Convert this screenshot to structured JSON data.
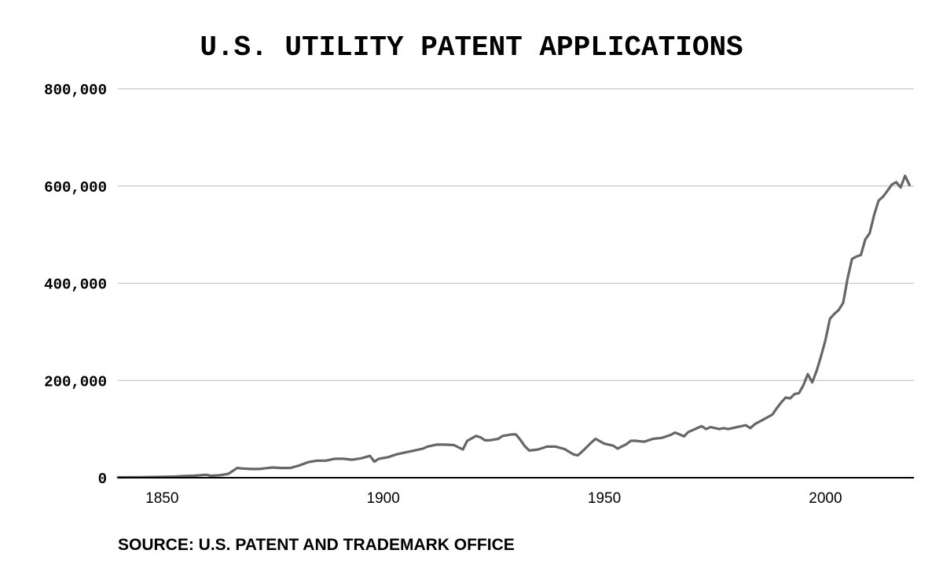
{
  "chart_data": {
    "type": "line",
    "title": "U.S. UTILITY PATENT APPLICATIONS",
    "xlabel": "",
    "ylabel": "",
    "xlim": [
      1840,
      2020
    ],
    "ylim": [
      0,
      800000
    ],
    "x_ticks": [
      "1850",
      "1900",
      "1950",
      "2000"
    ],
    "y_ticks": [
      "0",
      "200,000",
      "400,000",
      "600,000",
      "800,000"
    ],
    "grid": "horizontal",
    "color": "#666666",
    "source": "SOURCE: U.S. PATENT AND TRADEMARK OFFICE",
    "series": [
      {
        "points": [
          [
            1840,
            800
          ],
          [
            1845,
            1200
          ],
          [
            1850,
            2000
          ],
          [
            1853,
            2500
          ],
          [
            1855,
            3500
          ],
          [
            1857,
            4000
          ],
          [
            1860,
            6000
          ],
          [
            1861,
            4000
          ],
          [
            1863,
            5000
          ],
          [
            1865,
            8000
          ],
          [
            1867,
            20000
          ],
          [
            1868,
            19000
          ],
          [
            1870,
            18000
          ],
          [
            1872,
            18000
          ],
          [
            1873,
            19000
          ],
          [
            1875,
            21000
          ],
          [
            1877,
            20000
          ],
          [
            1879,
            20000
          ],
          [
            1881,
            25000
          ],
          [
            1883,
            32000
          ],
          [
            1885,
            35000
          ],
          [
            1887,
            35000
          ],
          [
            1889,
            39000
          ],
          [
            1891,
            39000
          ],
          [
            1893,
            37000
          ],
          [
            1895,
            40000
          ],
          [
            1897,
            45000
          ],
          [
            1898,
            33000
          ],
          [
            1899,
            39000
          ],
          [
            1901,
            42000
          ],
          [
            1903,
            48000
          ],
          [
            1905,
            52000
          ],
          [
            1907,
            56000
          ],
          [
            1909,
            60000
          ],
          [
            1910,
            64000
          ],
          [
            1911,
            66000
          ],
          [
            1912,
            68000
          ],
          [
            1914,
            68000
          ],
          [
            1916,
            67000
          ],
          [
            1918,
            58000
          ],
          [
            1919,
            76000
          ],
          [
            1921,
            86000
          ],
          [
            1922,
            83000
          ],
          [
            1923,
            77000
          ],
          [
            1924,
            77000
          ],
          [
            1926,
            80000
          ],
          [
            1927,
            86000
          ],
          [
            1929,
            89000
          ],
          [
            1930,
            89000
          ],
          [
            1931,
            78000
          ],
          [
            1932,
            65000
          ],
          [
            1933,
            56000
          ],
          [
            1935,
            58000
          ],
          [
            1937,
            64000
          ],
          [
            1939,
            64000
          ],
          [
            1941,
            59000
          ],
          [
            1943,
            48000
          ],
          [
            1944,
            46000
          ],
          [
            1945,
            54000
          ],
          [
            1947,
            72000
          ],
          [
            1948,
            80000
          ],
          [
            1950,
            70000
          ],
          [
            1952,
            66000
          ],
          [
            1953,
            60000
          ],
          [
            1955,
            69000
          ],
          [
            1956,
            76000
          ],
          [
            1957,
            76000
          ],
          [
            1959,
            74000
          ],
          [
            1961,
            80000
          ],
          [
            1963,
            82000
          ],
          [
            1965,
            88000
          ],
          [
            1966,
            93000
          ],
          [
            1967,
            89000
          ],
          [
            1968,
            85000
          ],
          [
            1969,
            94000
          ],
          [
            1971,
            102000
          ],
          [
            1972,
            106000
          ],
          [
            1973,
            100000
          ],
          [
            1974,
            104000
          ],
          [
            1976,
            100000
          ],
          [
            1977,
            102000
          ],
          [
            1978,
            100000
          ],
          [
            1980,
            104000
          ],
          [
            1982,
            108000
          ],
          [
            1983,
            102000
          ],
          [
            1984,
            110000
          ],
          [
            1986,
            120000
          ],
          [
            1988,
            130000
          ],
          [
            1989,
            143000
          ],
          [
            1990,
            155000
          ],
          [
            1991,
            165000
          ],
          [
            1992,
            163000
          ],
          [
            1993,
            172000
          ],
          [
            1994,
            174000
          ],
          [
            1995,
            190000
          ],
          [
            1996,
            213000
          ],
          [
            1997,
            196000
          ],
          [
            1998,
            220000
          ],
          [
            1999,
            250000
          ],
          [
            2000,
            283000
          ],
          [
            2001,
            327000
          ],
          [
            2002,
            337000
          ],
          [
            2003,
            345000
          ],
          [
            2004,
            360000
          ],
          [
            2005,
            410000
          ],
          [
            2006,
            450000
          ],
          [
            2007,
            455000
          ],
          [
            2008,
            458000
          ],
          [
            2009,
            490000
          ],
          [
            2010,
            503000
          ],
          [
            2011,
            540000
          ],
          [
            2012,
            570000
          ],
          [
            2013,
            578000
          ],
          [
            2014,
            590000
          ],
          [
            2015,
            603000
          ],
          [
            2016,
            608000
          ],
          [
            2017,
            597000
          ],
          [
            2018,
            621000
          ],
          [
            2019,
            602000
          ]
        ]
      }
    ]
  }
}
